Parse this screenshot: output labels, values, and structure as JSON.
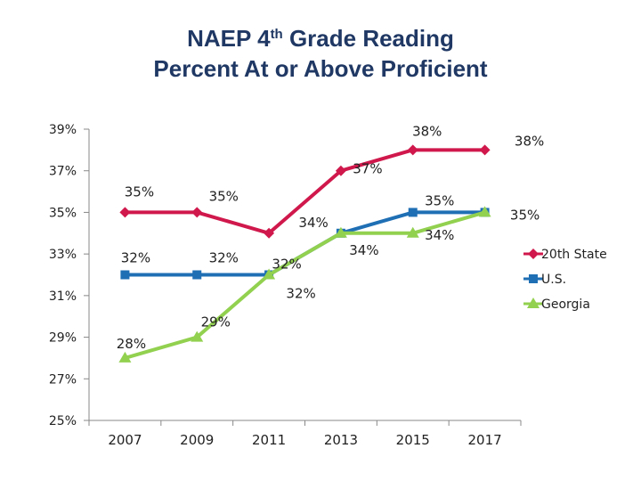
{
  "title": {
    "line1_prefix": "NAEP 4",
    "line1_sup": "th",
    "line1_suffix": " Grade Reading",
    "line2": "Percent At or Above Proficient"
  },
  "chart_data": {
    "type": "line",
    "categories": [
      "2007",
      "2009",
      "2011",
      "2013",
      "2015",
      "2017"
    ],
    "ylim": [
      25,
      39
    ],
    "yticks": [
      "25%",
      "27%",
      "29%",
      "31%",
      "33%",
      "35%",
      "37%",
      "39%"
    ],
    "grid": false,
    "legend_position": "right",
    "series": [
      {
        "name": "20th State",
        "color": "#d0184c",
        "marker": "diamond",
        "values": [
          35,
          35,
          34,
          37,
          38,
          38
        ],
        "labels": [
          "35%",
          "35%",
          "34%",
          "37%",
          "38%",
          "38%"
        ]
      },
      {
        "name": "U.S.",
        "color": "#1f6fb5",
        "marker": "square",
        "values": [
          32,
          32,
          32,
          34,
          35,
          35
        ],
        "labels": [
          "32%",
          "32%",
          "32%",
          "34%",
          "35%",
          "35%"
        ]
      },
      {
        "name": "Georgia",
        "color": "#92d050",
        "marker": "triangle",
        "values": [
          28,
          29,
          32,
          34,
          34,
          35
        ],
        "labels": [
          "28%",
          "29%",
          "32%",
          "34%",
          "34%",
          "35%"
        ]
      }
    ]
  }
}
